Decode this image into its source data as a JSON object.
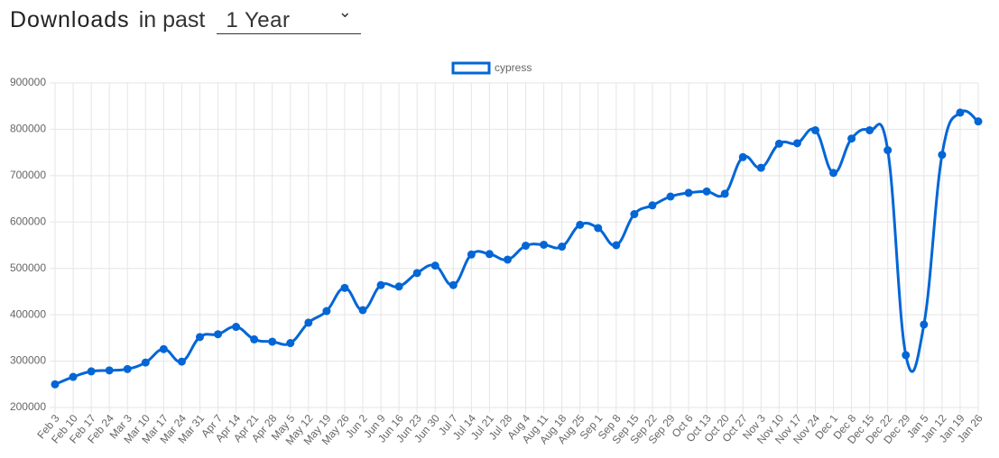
{
  "header": {
    "title": "Downloads",
    "connector": "in past",
    "period": "1 Year"
  },
  "chart_data": {
    "type": "line",
    "categories": [
      "Feb 3",
      "Feb 10",
      "Feb 17",
      "Feb 24",
      "Mar 3",
      "Mar 10",
      "Mar 17",
      "Mar 24",
      "Mar 31",
      "Apr 7",
      "Apr 14",
      "Apr 21",
      "Apr 28",
      "May 5",
      "May 12",
      "May 19",
      "May 26",
      "Jun 2",
      "Jun 9",
      "Jun 16",
      "Jun 23",
      "Jun 30",
      "Jul 7",
      "Jul 14",
      "Jul 21",
      "Jul 28",
      "Aug 4",
      "Aug 11",
      "Aug 18",
      "Aug 25",
      "Sep 1",
      "Sep 8",
      "Sep 15",
      "Sep 22",
      "Sep 29",
      "Oct 6",
      "Oct 13",
      "Oct 20",
      "Oct 27",
      "Nov 3",
      "Nov 10",
      "Nov 17",
      "Nov 24",
      "Dec 1",
      "Dec 8",
      "Dec 15",
      "Dec 22",
      "Dec 29",
      "Jan 5",
      "Jan 12",
      "Jan 19",
      "Jan 26"
    ],
    "series": [
      {
        "name": "cypress",
        "color": "#0366d6",
        "values": [
          250000,
          266000,
          278000,
          280000,
          283000,
          297000,
          326000,
          299000,
          352000,
          358000,
          374000,
          347000,
          342000,
          339000,
          383000,
          408000,
          458000,
          410000,
          464000,
          461000,
          490000,
          506000,
          464000,
          530000,
          531000,
          519000,
          549000,
          551000,
          547000,
          594000,
          587000,
          550000,
          617000,
          636000,
          655000,
          663000,
          666000,
          661000,
          740000,
          717000,
          769000,
          770000,
          798000,
          706000,
          780000,
          798000,
          755000,
          313000,
          379000,
          745000,
          836000,
          817000
        ]
      }
    ],
    "ylim": [
      200000,
      900000
    ],
    "yticks": [
      200000,
      300000,
      400000,
      500000,
      600000,
      700000,
      800000,
      900000
    ],
    "grid": true,
    "legend": "top"
  }
}
